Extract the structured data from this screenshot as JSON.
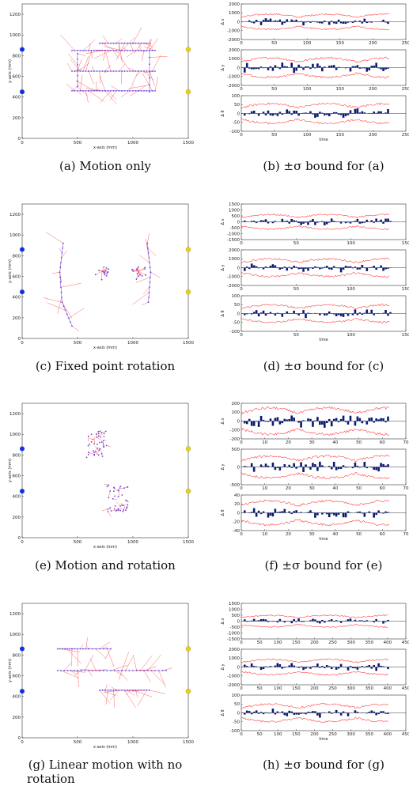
{
  "chart_data": [
    {
      "id": "a",
      "type": "scatter",
      "caption": "(a) Motion only",
      "xlabel": "x-axis (mm)",
      "ylabel": "y-axis (mm)",
      "xlim": [
        0,
        1500
      ],
      "ylim": [
        0,
        1300
      ],
      "xticks": [
        "0",
        "500",
        "1000",
        "1500"
      ],
      "yticks": [
        "0",
        "200",
        "400",
        "600",
        "800",
        "1000",
        "1200"
      ],
      "sensors_blue": [
        [
          0,
          860
        ],
        [
          0,
          450
        ]
      ],
      "sensors_yellow": [
        [
          1500,
          860
        ],
        [
          1500,
          450
        ]
      ],
      "paths": [
        [
          [
            450,
            850
          ],
          [
            600,
            850
          ],
          [
            750,
            850
          ],
          [
            900,
            850
          ],
          [
            1050,
            850
          ],
          [
            1200,
            850
          ]
        ],
        [
          [
            450,
            650
          ],
          [
            600,
            650
          ],
          [
            750,
            650
          ],
          [
            900,
            650
          ],
          [
            1050,
            650
          ],
          [
            1200,
            650
          ]
        ],
        [
          [
            450,
            460
          ],
          [
            600,
            460
          ],
          [
            750,
            460
          ],
          [
            900,
            460
          ],
          [
            1050,
            460
          ],
          [
            1200,
            460
          ]
        ],
        [
          [
            700,
            920
          ],
          [
            850,
            920
          ],
          [
            1000,
            920
          ],
          [
            1150,
            920
          ]
        ],
        [
          [
            500,
            820
          ],
          [
            500,
            500
          ]
        ],
        [
          [
            1150,
            850
          ],
          [
            1150,
            450
          ]
        ]
      ]
    },
    {
      "id": "b",
      "type": "bar",
      "caption": "(b) ±σ bound for (a)",
      "xlabel": "time",
      "xlim": [
        0,
        250
      ],
      "xticks": [
        "0",
        "50",
        "100",
        "150",
        "200",
        "250"
      ],
      "panels": [
        {
          "ylabel": "Δ x",
          "ylim": [
            -2000,
            2000
          ],
          "yticks": [
            "-2000",
            "-1000",
            "0",
            "1000",
            "2000"
          ],
          "bound": 700,
          "amp": 350
        },
        {
          "ylabel": "Δ y",
          "ylim": [
            -2000,
            2000
          ],
          "yticks": [
            "-2000",
            "-1000",
            "0",
            "1000",
            "2000"
          ],
          "bound": 900,
          "amp": 450
        },
        {
          "ylabel": "Δ θ",
          "ylim": [
            -100,
            100
          ],
          "yticks": [
            "-100",
            "-50",
            "0",
            "50",
            "100"
          ],
          "bound": 45,
          "amp": 22
        }
      ]
    },
    {
      "id": "c",
      "type": "scatter",
      "caption": "(c) Fixed point rotation",
      "xlabel": "x-axis (mm)",
      "ylabel": "y-axis (mm)",
      "xlim": [
        0,
        1500
      ],
      "ylim": [
        0,
        1300
      ],
      "xticks": [
        "0",
        "500",
        "1000",
        "1500"
      ],
      "yticks": [
        "0",
        "200",
        "400",
        "600",
        "800",
        "1000",
        "1200"
      ],
      "sensors_blue": [
        [
          0,
          860
        ],
        [
          0,
          450
        ]
      ],
      "sensors_yellow": [
        [
          1500,
          860
        ],
        [
          1500,
          450
        ]
      ],
      "paths": [
        [
          [
            370,
            920
          ],
          [
            340,
            640
          ],
          [
            360,
            350
          ]
        ],
        [
          [
            1130,
            920
          ],
          [
            1160,
            640
          ],
          [
            1140,
            350
          ]
        ],
        [
          [
            360,
            350
          ],
          [
            450,
            120
          ]
        ]
      ],
      "centers": [
        [
          720,
          650
        ],
        [
          1050,
          650
        ]
      ]
    },
    {
      "id": "d",
      "type": "bar",
      "caption": "(d) ±σ bound for (c)",
      "xlabel": "time",
      "xlim": [
        0,
        150
      ],
      "xticks": [
        "0",
        "50",
        "100",
        "150"
      ],
      "panels": [
        {
          "ylabel": "Δ x",
          "ylim": [
            -1500,
            1500
          ],
          "yticks": [
            "-1500",
            "-1000",
            "-500",
            "0",
            "500",
            "1000",
            "1500"
          ],
          "bound": 500,
          "amp": 250
        },
        {
          "ylabel": "Δ y",
          "ylim": [
            -2000,
            2000
          ],
          "yticks": [
            "-2000",
            "-1000",
            "0",
            "1000",
            "2000"
          ],
          "bound": 800,
          "amp": 400
        },
        {
          "ylabel": "Δ θ",
          "ylim": [
            -100,
            100
          ],
          "yticks": [
            "-100",
            "-50",
            "0",
            "50",
            "100"
          ],
          "bound": 40,
          "amp": 20
        }
      ]
    },
    {
      "id": "e",
      "type": "scatter",
      "caption": "(e) Motion and rotation",
      "xlabel": "x-axis (mm)",
      "ylabel": "y-axis (mm)",
      "xlim": [
        0,
        1500
      ],
      "ylim": [
        0,
        1300
      ],
      "xticks": [
        "0",
        "500",
        "1000",
        "1500"
      ],
      "yticks": [
        "0",
        "200",
        "400",
        "600",
        "800",
        "1000",
        "1200"
      ],
      "sensors_blue": [
        [
          0,
          860
        ],
        [
          0,
          450
        ]
      ],
      "sensors_yellow": [
        [
          1500,
          860
        ],
        [
          1500,
          450
        ]
      ],
      "clusters": [
        [
          670,
          900
        ],
        [
          860,
          380
        ]
      ]
    },
    {
      "id": "f",
      "type": "bar",
      "caption": "(f) ±σ bound for (e)",
      "xlabel": "time",
      "xlim": [
        0,
        70
      ],
      "xticks": [
        "0",
        "10",
        "20",
        "30",
        "40",
        "50",
        "60",
        "70"
      ],
      "panels": [
        {
          "ylabel": "Δ x",
          "ylim": [
            -200,
            200
          ],
          "yticks": [
            "-200",
            "-100",
            "0",
            "100",
            "200"
          ],
          "bound": 120,
          "amp": 60
        },
        {
          "ylabel": "Δ y",
          "ylim": [
            -500,
            500
          ],
          "yticks": [
            "-500",
            "0",
            "500"
          ],
          "bound": 250,
          "amp": 120
        },
        {
          "ylabel": "Δ θ",
          "ylim": [
            -40,
            40
          ],
          "yticks": [
            "-40",
            "-20",
            "0",
            "20",
            "40"
          ],
          "bound": 22,
          "amp": 10
        }
      ]
    },
    {
      "id": "g",
      "type": "scatter",
      "caption": "(g) Linear motion with no rotation",
      "caption_lines": [
        "(g) Linear motion with no",
        "rotation"
      ],
      "xlabel": "x-axis (mm)",
      "ylabel": "y-axis (mm)",
      "xlim": [
        0,
        1500
      ],
      "ylim": [
        0,
        1300
      ],
      "xticks": [
        "0",
        "500",
        "1000",
        "1500"
      ],
      "yticks": [
        "0",
        "200",
        "400",
        "600",
        "800",
        "1000",
        "1200"
      ],
      "sensors_blue": [
        [
          0,
          860
        ],
        [
          0,
          450
        ]
      ],
      "sensors_yellow": [
        [
          1500,
          860
        ],
        [
          1500,
          450
        ]
      ],
      "paths": [
        [
          [
            320,
            860
          ],
          [
            450,
            860
          ],
          [
            600,
            860
          ],
          [
            800,
            860
          ]
        ],
        [
          [
            320,
            650
          ],
          [
            500,
            650
          ],
          [
            700,
            650
          ],
          [
            900,
            650
          ],
          [
            1100,
            650
          ],
          [
            1300,
            650
          ]
        ],
        [
          [
            700,
            460
          ],
          [
            850,
            460
          ],
          [
            1000,
            460
          ],
          [
            1150,
            460
          ]
        ]
      ]
    },
    {
      "id": "h",
      "type": "bar",
      "caption": "(h) ±σ bound for (g)",
      "xlabel": "time",
      "xlim": [
        0,
        450
      ],
      "xticks": [
        "0",
        "50",
        "100",
        "150",
        "200",
        "250",
        "300",
        "350",
        "400",
        "450"
      ],
      "panels": [
        {
          "ylabel": "Δ x",
          "ylim": [
            -1500,
            1500
          ],
          "yticks": [
            "-1500",
            "-1000",
            "-500",
            "0",
            "500",
            "1000",
            "1500"
          ],
          "bound": 400,
          "amp": 200
        },
        {
          "ylabel": "Δ y",
          "ylim": [
            -2000,
            2000
          ],
          "yticks": [
            "-2000",
            "-1000",
            "0",
            "1000",
            "2000"
          ],
          "bound": 700,
          "amp": 350
        },
        {
          "ylabel": "Δ θ",
          "ylim": [
            -100,
            100
          ],
          "yticks": [
            "-100",
            "-50",
            "0",
            "50",
            "100"
          ],
          "bound": 40,
          "amp": 20
        }
      ]
    }
  ]
}
